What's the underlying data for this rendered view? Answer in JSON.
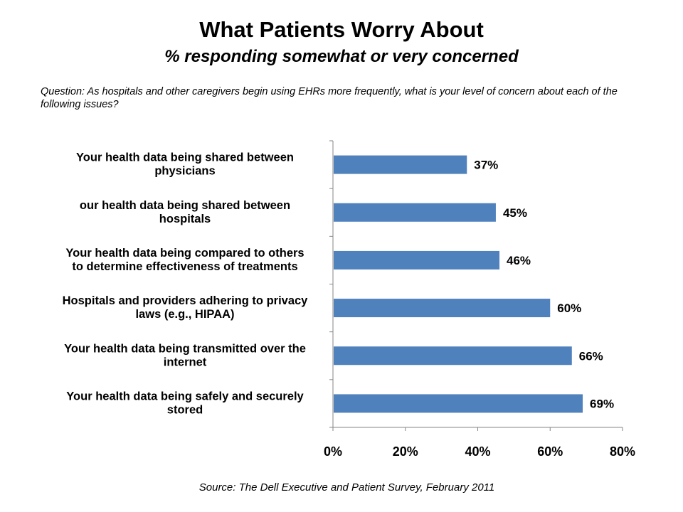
{
  "chart_data": {
    "type": "bar",
    "orientation": "horizontal",
    "title": "What Patients Worry About",
    "subtitle": "% responding somewhat or very concerned",
    "question": "Question: As hospitals and other caregivers begin using EHRs more frequently, what is your level of concern about each of the following issues?",
    "source": "Source: The Dell Executive and Patient Survey, February 2011",
    "categories": [
      [
        "Your health data being shared between",
        "physicians"
      ],
      [
        "our health data being shared between",
        "hospitals"
      ],
      [
        "Your health data being compared to others",
        "to determine effectiveness of treatments"
      ],
      [
        "Hospitals and providers adhering to privacy",
        "laws (e.g., HIPAA)"
      ],
      [
        "Your health data being transmitted over the",
        "internet"
      ],
      [
        "Your health data being safely and securely",
        "stored"
      ]
    ],
    "values": [
      37,
      45,
      46,
      60,
      66,
      69
    ],
    "value_labels": [
      "37%",
      "45%",
      "46%",
      "60%",
      "66%",
      "69%"
    ],
    "xlabel": "",
    "ylabel": "",
    "xlim": [
      0,
      80
    ],
    "x_ticks": [
      0,
      20,
      40,
      60,
      80
    ],
    "x_tick_labels": [
      "0%",
      "20%",
      "40%",
      "60%",
      "80%"
    ],
    "grid": false,
    "legend": "none",
    "bar_color": "#4f81bd",
    "axis_color": "#868686"
  }
}
